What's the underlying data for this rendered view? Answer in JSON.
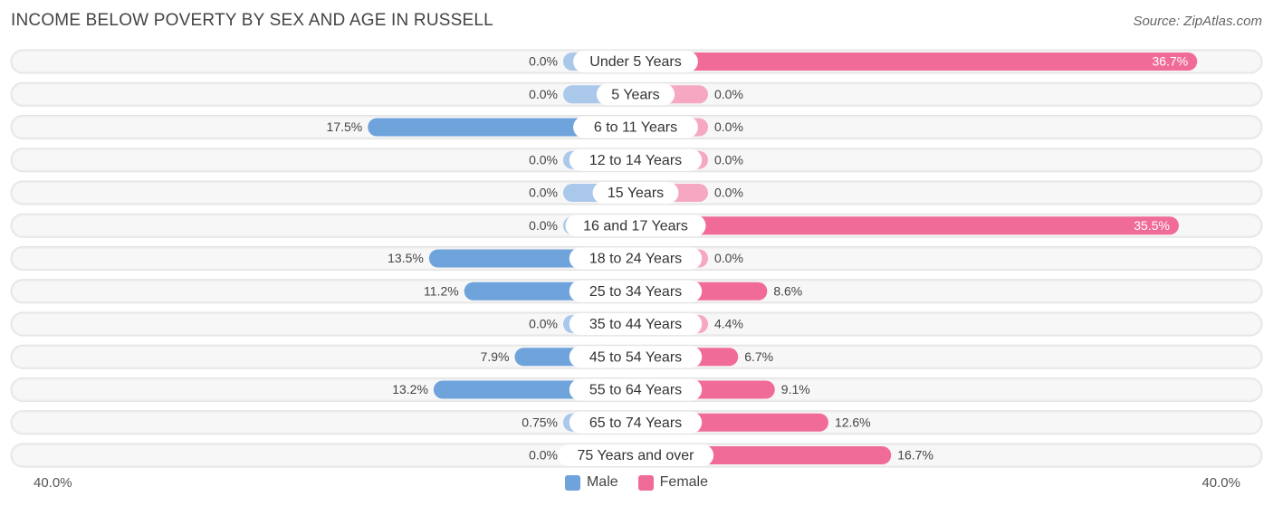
{
  "title": "INCOME BELOW POVERTY BY SEX AND AGE IN RUSSELL",
  "source": "Source: ZipAtlas.com",
  "chart_data": {
    "type": "bar",
    "orientation": "horizontal-diverging",
    "categories": [
      "Under 5 Years",
      "5 Years",
      "6 to 11 Years",
      "12 to 14 Years",
      "15 Years",
      "16 and 17 Years",
      "18 to 24 Years",
      "25 to 34 Years",
      "35 to 44 Years",
      "45 to 54 Years",
      "55 to 64 Years",
      "65 to 74 Years",
      "75 Years and over"
    ],
    "series": [
      {
        "name": "Male",
        "values": [
          0.0,
          0.0,
          17.5,
          0.0,
          0.0,
          0.0,
          13.5,
          11.2,
          0.0,
          7.9,
          13.2,
          0.75,
          0.0
        ],
        "labels": [
          "0.0%",
          "0.0%",
          "17.5%",
          "0.0%",
          "0.0%",
          "0.0%",
          "13.5%",
          "11.2%",
          "0.0%",
          "7.9%",
          "13.2%",
          "0.75%",
          "0.0%"
        ],
        "color": "#6fa3dc"
      },
      {
        "name": "Female",
        "values": [
          36.7,
          0.0,
          0.0,
          0.0,
          0.0,
          35.5,
          0.0,
          8.6,
          4.4,
          6.7,
          9.1,
          12.6,
          16.7
        ],
        "labels": [
          "36.7%",
          "0.0%",
          "0.0%",
          "0.0%",
          "0.0%",
          "35.5%",
          "0.0%",
          "8.6%",
          "4.4%",
          "6.7%",
          "9.1%",
          "12.6%",
          "16.7%"
        ],
        "color": "#f06b98"
      }
    ],
    "xlim": [
      -40,
      40
    ],
    "axis_left_label": "40.0%",
    "axis_right_label": "40.0%",
    "legend_position": "bottom-center"
  },
  "colors": {
    "male_light": "#aac8ea",
    "female_light": "#f6a8c3",
    "row_bg": "#eeeeee"
  }
}
